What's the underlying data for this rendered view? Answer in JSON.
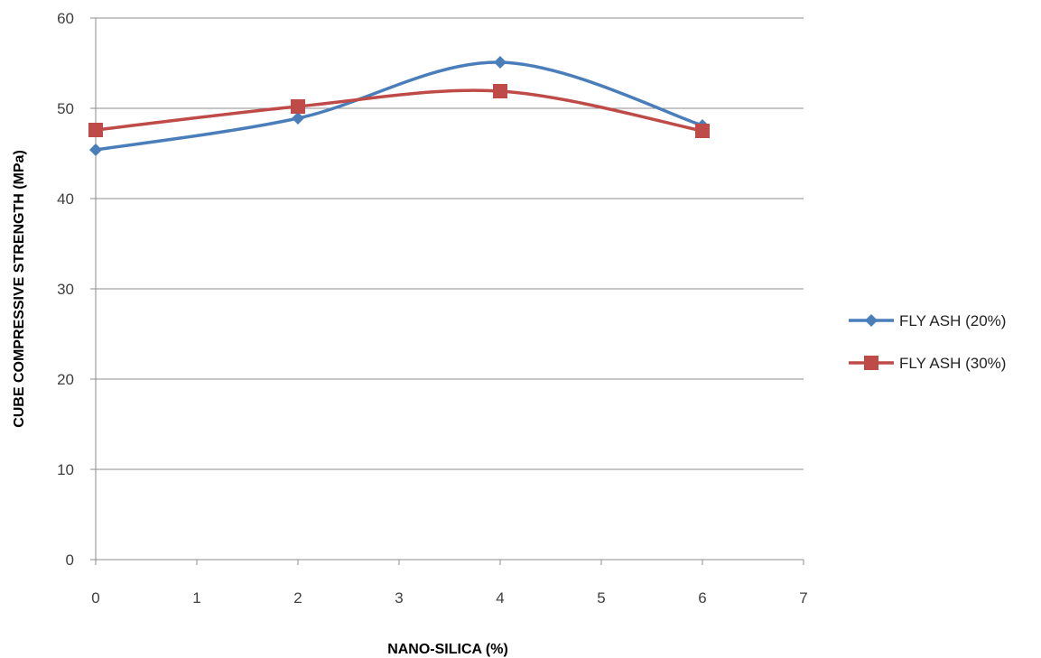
{
  "chart_data": {
    "type": "scatter",
    "xlabel": "NANO-SILICA (%)",
    "ylabel": "CUBE COMPRESSIVE STRENGTH  (MPa)",
    "xlim": [
      0,
      7
    ],
    "ylim": [
      0,
      60
    ],
    "xticks": [
      0,
      1,
      2,
      3,
      4,
      5,
      6,
      7
    ],
    "yticks": [
      0,
      10,
      20,
      30,
      40,
      50,
      60
    ],
    "x_tick_labels": [
      "0",
      "1",
      "2",
      "3",
      "4",
      "5",
      "6",
      "7"
    ],
    "y_tick_labels": [
      "0",
      "10",
      "20",
      "30",
      "40",
      "50",
      "60"
    ],
    "grid": "horizontal",
    "smooth_lines": true,
    "legend_position": "right",
    "series": [
      {
        "name": "FLY ASH (20%)",
        "color": "#4a7ebb",
        "marker": "diamond",
        "x": [
          0,
          2,
          4,
          6
        ],
        "y": [
          45.4,
          48.9,
          55.1,
          48.1
        ]
      },
      {
        "name": "FLY ASH (30%)",
        "color": "#be4b48",
        "marker": "square",
        "x": [
          0,
          2,
          4,
          6
        ],
        "y": [
          47.6,
          50.2,
          51.9,
          47.5
        ]
      }
    ]
  }
}
